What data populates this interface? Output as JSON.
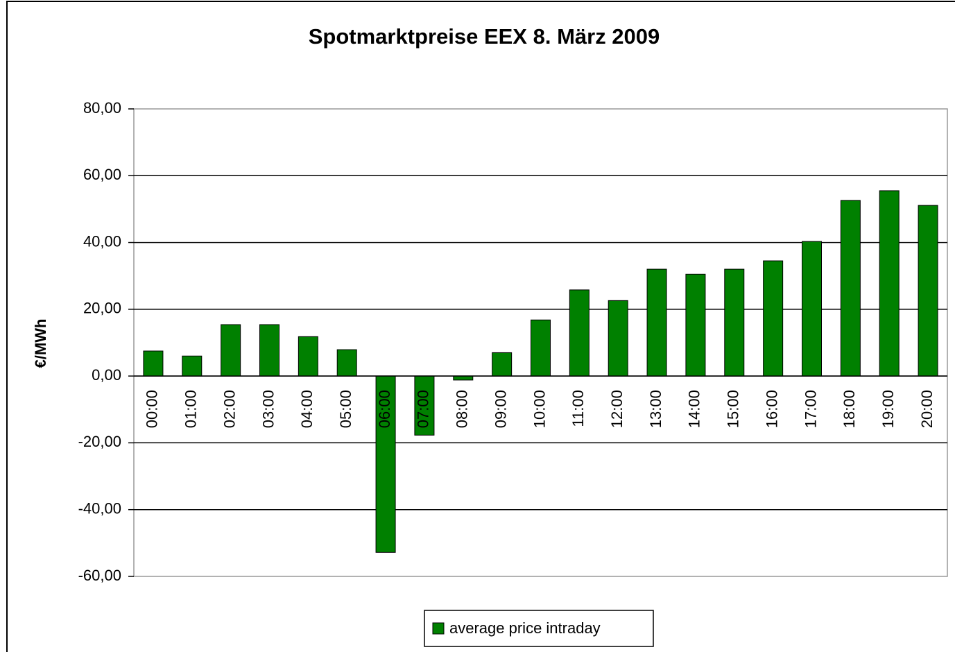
{
  "chart_data": {
    "type": "bar",
    "title": "Spotmarktpreise EEX 8. März 2009",
    "y_label": "€/MWh",
    "categories": [
      "00:00",
      "01:00",
      "02:00",
      "03:00",
      "04:00",
      "05:00",
      "06:00",
      "07:00",
      "08:00",
      "09:00",
      "10:00",
      "11:00",
      "12:00",
      "13:00",
      "14:00",
      "15:00",
      "16:00",
      "17:00",
      "18:00",
      "19:00",
      "20:00"
    ],
    "series": [
      {
        "name": "average price intraday",
        "color": "#008000",
        "values": [
          7.5,
          6,
          15.4,
          15.4,
          11.8,
          7.9,
          -52.8,
          -17.7,
          -1.2,
          7,
          16.8,
          25.8,
          22.6,
          32,
          30.5,
          32,
          34.5,
          40.3,
          52.6,
          55.5,
          51.1
        ]
      }
    ],
    "ylim": [
      -60,
      80
    ],
    "yticks": [
      {
        "value": -60,
        "label": "-60,00"
      },
      {
        "value": -40,
        "label": "-40,00"
      },
      {
        "value": -20,
        "label": "-20,00"
      },
      {
        "value": 0,
        "label": "0,00"
      },
      {
        "value": 20,
        "label": "20,00"
      },
      {
        "value": 40,
        "label": "40,00"
      },
      {
        "value": 60,
        "label": "60,00"
      },
      {
        "value": 80,
        "label": "80,00"
      }
    ],
    "grid": true,
    "legend": "bottom"
  }
}
